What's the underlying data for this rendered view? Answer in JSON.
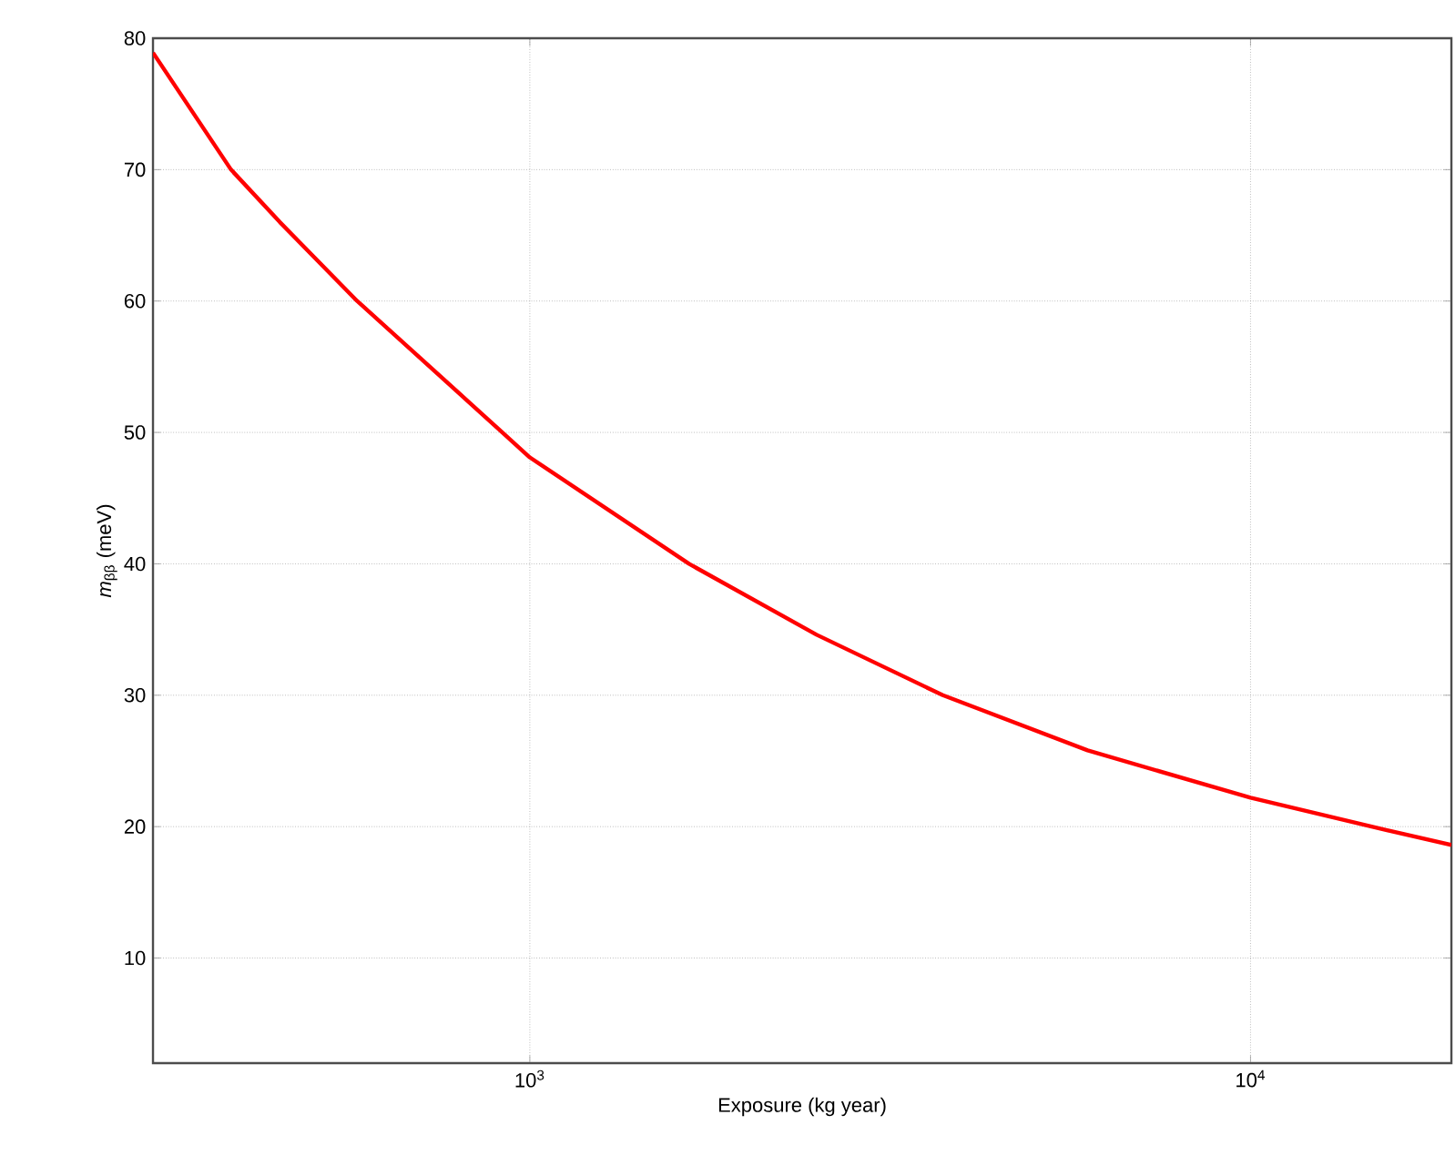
{
  "chart_data": {
    "type": "line",
    "xlabel": "Exposure (kg year)",
    "ylabel": "*m*$_{ββ}$ (meV)",
    "x": [
      300,
      385,
      450,
      576,
      916,
      1000,
      1663,
      2500,
      3742,
      5943,
      10000,
      15000,
      19000
    ],
    "series": [
      {
        "color": "#ff0000",
        "values": [
          78.9,
          70,
          66,
          60,
          50,
          48.1,
          40,
          34.6,
          30,
          25.8,
          22.2,
          19.9,
          18.6
        ]
      }
    ],
    "xlim": [
      300,
      19000
    ],
    "ylim": [
      2,
      80
    ],
    "log": "x",
    "grid": true,
    "xticks": [
      {
        "value": 1000,
        "label": "10$^{3}$"
      },
      {
        "value": 10000,
        "label": "10$^{4}$"
      }
    ],
    "yticks": [
      10,
      20,
      30,
      40,
      50,
      60,
      70,
      80
    ]
  }
}
